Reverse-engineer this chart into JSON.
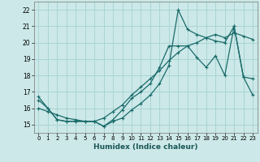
{
  "xlabel": "Humidex (Indice chaleur)",
  "bg_color": "#cce8e8",
  "grid_color": "#aad4d4",
  "line_color": "#1a6b6b",
  "xlim": [
    -0.5,
    23.5
  ],
  "ylim": [
    14.5,
    22.5
  ],
  "xticks": [
    0,
    1,
    2,
    3,
    4,
    5,
    6,
    7,
    8,
    9,
    10,
    11,
    12,
    13,
    14,
    15,
    16,
    17,
    18,
    19,
    20,
    21,
    22,
    23
  ],
  "yticks": [
    15,
    16,
    17,
    18,
    19,
    20,
    21,
    22
  ],
  "series": [
    {
      "x": [
        0,
        1,
        2,
        3,
        4,
        5,
        6,
        7,
        8,
        9,
        10,
        11,
        12,
        13,
        14,
        15,
        16,
        17,
        18,
        19,
        20,
        21,
        22,
        23
      ],
      "y": [
        16.7,
        16.0,
        15.3,
        15.2,
        15.2,
        15.2,
        15.2,
        14.9,
        15.3,
        15.9,
        16.6,
        17.0,
        17.5,
        18.5,
        19.8,
        19.8,
        19.8,
        19.1,
        18.5,
        19.2,
        18.0,
        21.0,
        17.9,
        16.8
      ]
    },
    {
      "x": [
        0,
        1,
        2,
        3,
        4,
        5,
        6,
        7,
        8,
        9,
        10,
        11,
        12,
        13,
        14,
        15,
        16,
        17,
        18,
        19,
        20,
        21,
        22,
        23
      ],
      "y": [
        16.0,
        15.8,
        15.6,
        15.4,
        15.3,
        15.2,
        15.2,
        15.4,
        15.8,
        16.2,
        16.8,
        17.3,
        17.8,
        18.3,
        18.9,
        19.4,
        19.8,
        20.0,
        20.3,
        20.5,
        20.3,
        20.6,
        20.4,
        20.2
      ]
    },
    {
      "x": [
        0,
        1,
        2,
        3,
        4,
        5,
        6,
        7,
        8,
        9,
        10,
        11,
        12,
        13,
        14,
        15,
        16,
        17,
        18,
        19,
        20,
        21,
        22,
        23
      ],
      "y": [
        16.5,
        16.0,
        15.3,
        15.2,
        15.2,
        15.2,
        15.2,
        14.9,
        15.2,
        15.4,
        15.9,
        16.3,
        16.8,
        17.5,
        18.6,
        22.0,
        20.8,
        20.5,
        20.3,
        20.1,
        20.0,
        21.0,
        17.9,
        17.8
      ]
    }
  ]
}
